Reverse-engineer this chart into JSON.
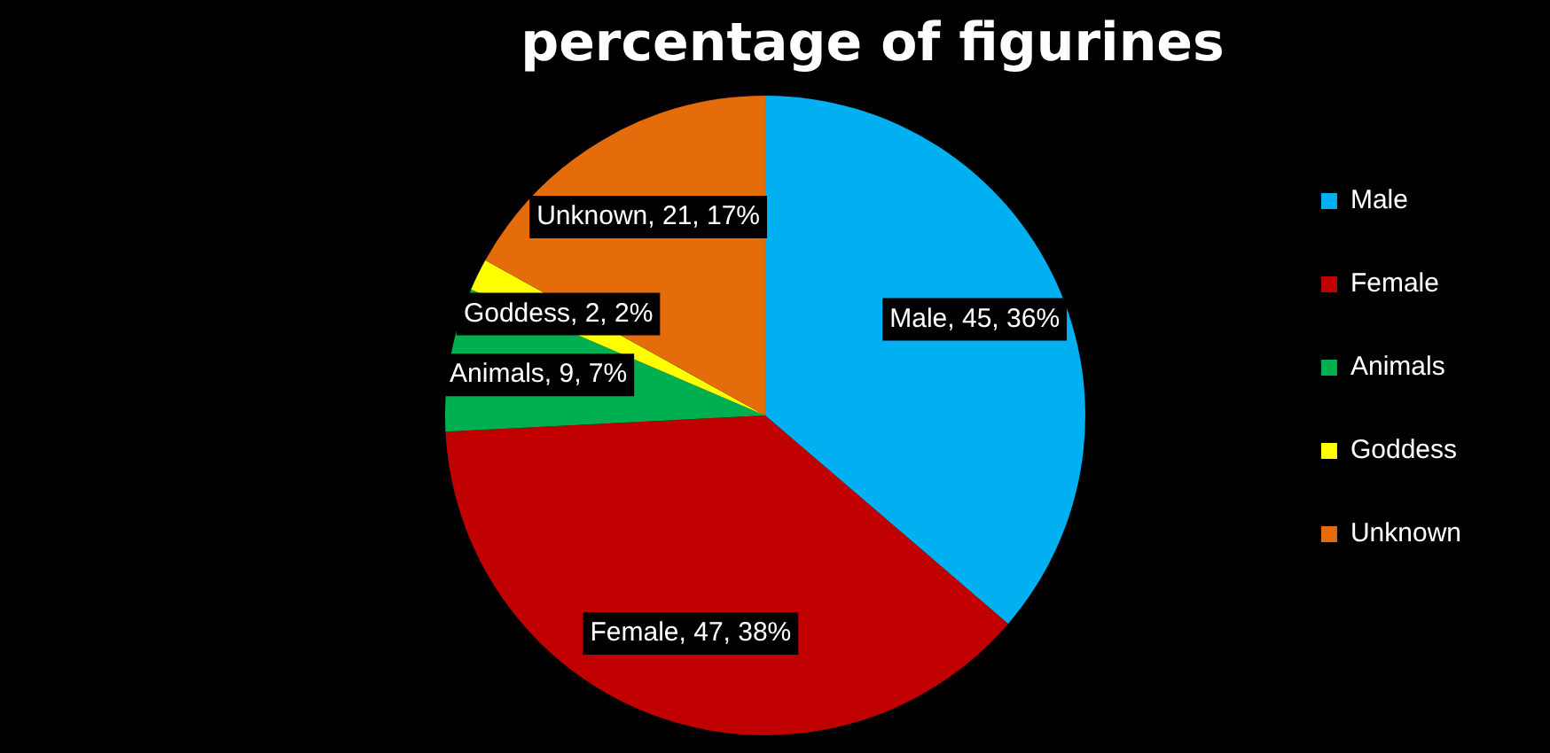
{
  "chart_data": {
    "type": "pie",
    "title": "percentage of figurines",
    "categories": [
      "Male",
      "Female",
      "Animals",
      "Goddess",
      "Unknown"
    ],
    "values": [
      45,
      47,
      9,
      2,
      21
    ],
    "colors": [
      "#00b0f0",
      "#c00000",
      "#00b050",
      "#ffff00",
      "#e46c0a"
    ],
    "value_labels": [
      "Male, 45, 36%",
      "Female, 47, 38%",
      "Animals, 9, 7%",
      "Goddess, 2, 2%",
      "Unknown, 21, 17%"
    ],
    "legend": "right"
  }
}
